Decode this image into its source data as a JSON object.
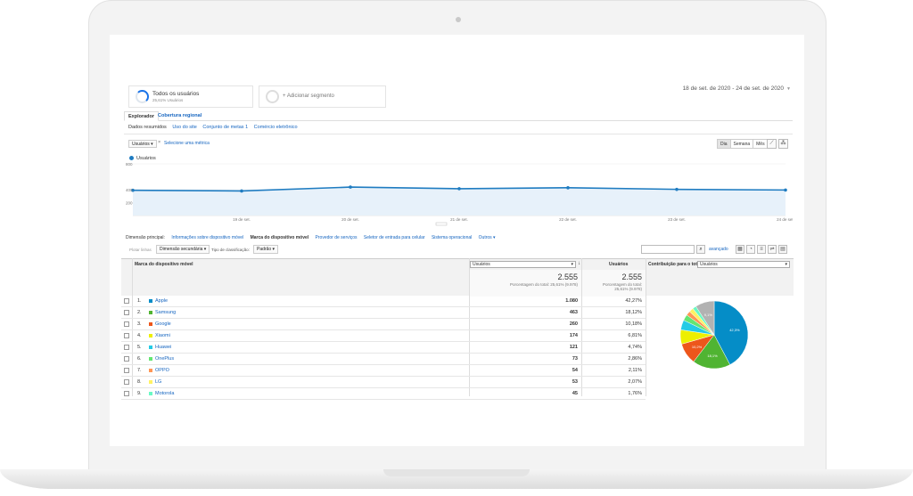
{
  "segments": [
    {
      "title": "Todos os usuários",
      "subtitle": "25,61% Usuários"
    },
    {
      "title": "+ Adicionar segmento"
    }
  ],
  "date_range": "18 de set. de 2020 - 24 de set. de 2020",
  "tabs": [
    "Explorador",
    "Cobertura regional"
  ],
  "subnav": [
    "Dados resumidos",
    "Uso do site",
    "Conjunto de metas 1",
    "Comércio eletrônico"
  ],
  "metric": {
    "selected": "Usuários",
    "remove": "×",
    "select_link": "Selecione uma métrica"
  },
  "periods": [
    "Dia",
    "Semana",
    "Mês"
  ],
  "chart_data": {
    "type": "area",
    "series": [
      {
        "name": "Usuários",
        "values": [
          390,
          380,
          440,
          415,
          430,
          405,
          395
        ]
      }
    ],
    "categories": [
      "18 de set.",
      "19 de set.",
      "20 de set.",
      "21 de set.",
      "22 de set.",
      "23 de set.",
      "24 de set."
    ],
    "ylim": [
      0,
      800
    ],
    "yticks": [
      "800",
      "400",
      "200"
    ],
    "xticks": [
      "19 de set.",
      "20 de set.",
      "21 de set.",
      "22 de set.",
      "23 de set.",
      "24 de set."
    ],
    "legend": "top-left",
    "color": "#1f7cc1"
  },
  "dimension_row": {
    "label": "Dimensão principal:",
    "items": [
      "Informações sobre dispositivo móvel",
      "Marca do dispositivo móvel",
      "Provedor de serviços",
      "Seletor de entrada para celular",
      "Sistema operacional",
      "Outros ▾"
    ]
  },
  "controls": {
    "plot_rows": "Plotar linhas",
    "secondary": "Dimensão secundária ▾",
    "sort_label": "Tipo de classificação:",
    "sort_value": "Padrão ▾",
    "advanced": "avançado"
  },
  "table": {
    "col_dim": "Marca do dispositivo móvel",
    "col_metric_select": "Usuários",
    "col_metric2": "Usuários",
    "col_contrib": "Contribuição para o total:",
    "contrib_select": "Usuários",
    "total1": "2.555",
    "total1_sub": "Porcentagem do total: 25,61% (9.978)",
    "total2": "2.555",
    "total2_sub1": "Porcentagem do total:",
    "total2_sub2": "25,61% (9.978)",
    "rows": [
      {
        "idx": "1.",
        "name": "Apple",
        "v1": "1.080",
        "v2": "42,27%",
        "color": "#058dc7"
      },
      {
        "idx": "2.",
        "name": "Samsung",
        "v1": "463",
        "v2": "18,12%",
        "color": "#50b432"
      },
      {
        "idx": "3.",
        "name": "Google",
        "v1": "260",
        "v2": "10,18%",
        "color": "#ed561b"
      },
      {
        "idx": "4.",
        "name": "Xiaomi",
        "v1": "174",
        "v2": "6,81%",
        "color": "#edef00"
      },
      {
        "idx": "5.",
        "name": "Huawei",
        "v1": "121",
        "v2": "4,74%",
        "color": "#24cbe5"
      },
      {
        "idx": "6.",
        "name": "OnePlus",
        "v1": "73",
        "v2": "2,86%",
        "color": "#64e572"
      },
      {
        "idx": "7.",
        "name": "OPPO",
        "v1": "54",
        "v2": "2,11%",
        "color": "#ff9655"
      },
      {
        "idx": "8.",
        "name": "LG",
        "v1": "53",
        "v2": "2,07%",
        "color": "#fff263"
      },
      {
        "idx": "9.",
        "name": "Motorola",
        "v1": "45",
        "v2": "1,76%",
        "color": "#6af9c4"
      }
    ]
  },
  "pie_data": {
    "type": "pie",
    "values": [
      42.27,
      18.12,
      10.18,
      6.81,
      4.74,
      2.86,
      2.11,
      2.07,
      1.76,
      9.08
    ],
    "colors": [
      "#058dc7",
      "#50b432",
      "#ed561b",
      "#edef00",
      "#24cbe5",
      "#64e572",
      "#ff9655",
      "#fff263",
      "#6af9c4",
      "#b2b2b2"
    ],
    "labels": [
      "42,3%",
      "18,1%",
      "10,2%",
      "",
      "",
      "",
      "",
      "",
      "",
      "9,1%"
    ]
  }
}
